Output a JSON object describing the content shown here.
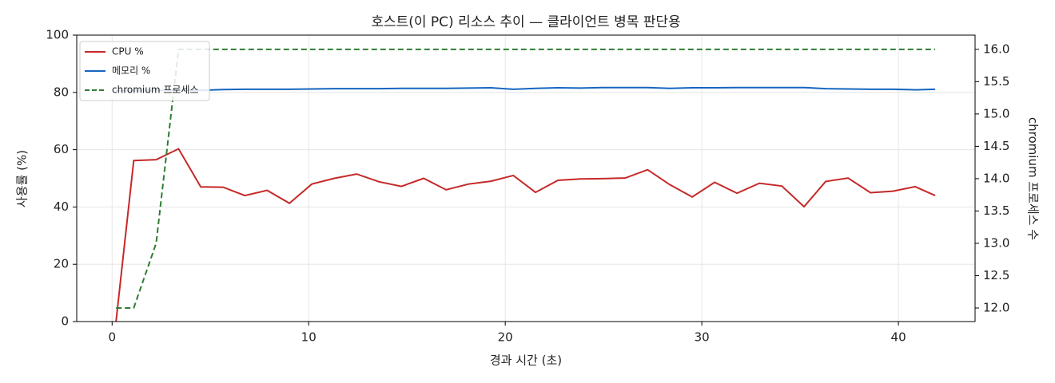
{
  "chart_data": {
    "type": "line",
    "title": "호스트(이 PC) 리소스 추이 — 클라이언트 병목 판단용",
    "x_label": "경과 시간 (초)",
    "y_label": "사용률 (%)",
    "y2_label": "chromium 프로세스 수",
    "x": [
      0.2,
      1.1,
      2.24,
      3.38,
      4.51,
      5.65,
      6.75,
      7.89,
      9.02,
      10.16,
      11.3,
      12.44,
      13.58,
      14.72,
      15.85,
      16.99,
      18.13,
      19.27,
      20.41,
      21.54,
      22.68,
      23.82,
      24.96,
      26.1,
      27.24,
      28.37,
      29.51,
      30.65,
      31.79,
      32.93,
      34.07,
      35.2,
      36.3,
      37.44,
      38.58,
      39.72,
      40.85,
      41.87
    ],
    "series": [
      {
        "name": "CPU %",
        "color": "#c62828",
        "linestyle": "solid",
        "values": [
          0,
          56.2,
          56.5,
          60.3,
          47,
          46.9,
          44,
          45.8,
          41.3,
          48,
          50,
          51.5,
          48.8,
          47.2,
          50,
          46,
          48,
          49,
          51,
          45.1,
          49.3,
          49.8,
          49.9,
          50.1,
          53,
          47.8,
          43.5,
          48.6,
          44.8,
          48.3,
          47.3,
          40.1,
          48.9,
          50.1,
          45,
          45.5,
          47.1,
          44
        ]
      },
      {
        "name": "메모리 %",
        "color": "#1565c0",
        "linestyle": "solid",
        "values": [
          80.5,
          80.6,
          80.7,
          80.8,
          80.7,
          81.0,
          81.1,
          81.1,
          81.1,
          81.2,
          81.3,
          81.3,
          81.3,
          81.4,
          81.4,
          81.4,
          81.5,
          81.6,
          81.1,
          81.4,
          81.6,
          81.5,
          81.7,
          81.7,
          81.7,
          81.4,
          81.6,
          81.6,
          81.7,
          81.7,
          81.7,
          81.7,
          81.3,
          81.2,
          81.1,
          81.1,
          80.9,
          81.1
        ]
      },
      {
        "name": "chromium 프로세스",
        "color": "#2e7d32",
        "linestyle": "dashed",
        "axis": "y2",
        "values": [
          12,
          12,
          13,
          16,
          16,
          16,
          16,
          16,
          16,
          16,
          16,
          16,
          16,
          16,
          16,
          16,
          16,
          16,
          16,
          16,
          16,
          16,
          16,
          16,
          16,
          16,
          16,
          16,
          16,
          16,
          16,
          16,
          16,
          16,
          16,
          16,
          16,
          16
        ]
      }
    ],
    "xlim": [
      -1.8,
      43.9
    ],
    "xticks": [
      0,
      10,
      20,
      30,
      40
    ],
    "ylim": [
      0,
      100
    ],
    "yticks": [
      0,
      20,
      40,
      60,
      80,
      100
    ],
    "y2lim": [
      11.79,
      16.22
    ],
    "y2ticks": [
      {
        "value": 12,
        "label": "12.0"
      },
      {
        "value": 12.5,
        "label": "12.5"
      },
      {
        "value": 13,
        "label": "13.0"
      },
      {
        "value": 13.5,
        "label": "13.5"
      },
      {
        "value": 14,
        "label": "14.0"
      },
      {
        "value": 14.5,
        "label": "14.5"
      },
      {
        "value": 15,
        "label": "15.0"
      },
      {
        "value": 15.5,
        "label": "15.5"
      },
      {
        "value": 16,
        "label": "16.0"
      }
    ],
    "grid": true,
    "legend": "upper-left"
  }
}
